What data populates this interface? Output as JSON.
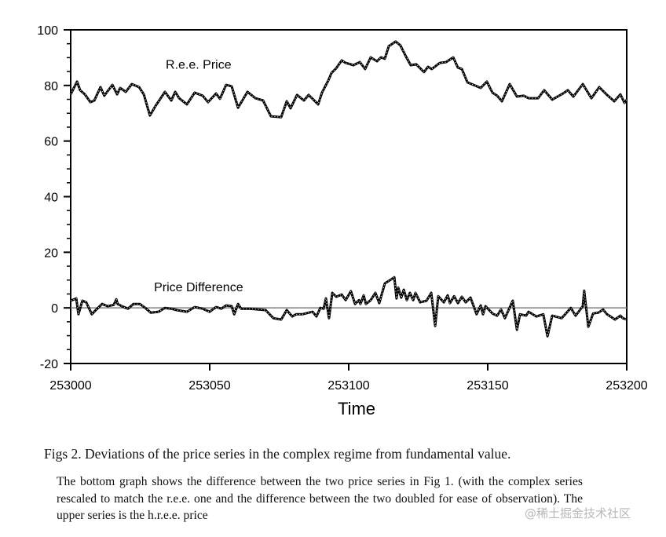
{
  "chart_data": {
    "type": "line",
    "title": "",
    "xlabel": "Time",
    "ylabel": "",
    "xlim": [
      253000,
      253200
    ],
    "ylim": [
      -20,
      100
    ],
    "x_ticks": [
      "253000",
      "253050",
      "253100",
      "253150",
      "253200"
    ],
    "x_tick_values": [
      253000,
      253050,
      253100,
      253150,
      253200
    ],
    "y_ticks": [
      "100",
      "80",
      "60",
      "40",
      "20",
      "0",
      "-20"
    ],
    "y_tick_values": [
      100,
      80,
      60,
      40,
      20,
      0,
      -20
    ],
    "y_minor_step": 5,
    "grid": false,
    "reference_line": {
      "y": 0,
      "color": "#808080"
    },
    "annotations": [
      {
        "text": "R.e.e. Price",
        "x": 253046,
        "y": 86
      },
      {
        "text": "Price Difference",
        "x": 253046,
        "y": 6
      }
    ],
    "series": [
      {
        "name": "R.e.e. Price",
        "color": "#000000",
        "overlay_color": "#ffffff",
        "points": [
          [
            0,
            76.8
          ],
          [
            2.3,
            81.4
          ],
          [
            3.4,
            78.3
          ],
          [
            5.1,
            76.8
          ],
          [
            7.1,
            74
          ],
          [
            8.5,
            74.6
          ],
          [
            10.7,
            79.4
          ],
          [
            12.1,
            76.3
          ],
          [
            15,
            80.2
          ],
          [
            16.7,
            76.8
          ],
          [
            17.8,
            79.1
          ],
          [
            19.8,
            77.7
          ],
          [
            22,
            80.5
          ],
          [
            24.6,
            79.4
          ],
          [
            26.3,
            76.8
          ],
          [
            28.5,
            69.2
          ],
          [
            30.5,
            72.6
          ],
          [
            33.9,
            77.7
          ],
          [
            36.2,
            74.6
          ],
          [
            37.6,
            77.7
          ],
          [
            39,
            75.4
          ],
          [
            41.8,
            73.2
          ],
          [
            44.6,
            77.4
          ],
          [
            47.5,
            76.3
          ],
          [
            49.4,
            74
          ],
          [
            52.3,
            77.1
          ],
          [
            53.7,
            75.2
          ],
          [
            55.9,
            80.2
          ],
          [
            57.9,
            79.7
          ],
          [
            60.2,
            72
          ],
          [
            63.6,
            77.7
          ],
          [
            66.4,
            75.4
          ],
          [
            69.2,
            74.6
          ],
          [
            72,
            68.9
          ],
          [
            75.7,
            68.6
          ],
          [
            77.7,
            74.3
          ],
          [
            79.1,
            71.8
          ],
          [
            81.4,
            76.6
          ],
          [
            83.9,
            74.6
          ],
          [
            85.6,
            76.6
          ],
          [
            89,
            73.2
          ],
          [
            90.4,
            77.4
          ],
          [
            92.7,
            81.9
          ],
          [
            93.8,
            84.5
          ],
          [
            95.5,
            86.2
          ],
          [
            97.5,
            89
          ],
          [
            98.9,
            88.1
          ],
          [
            101.7,
            87.3
          ],
          [
            104,
            88.4
          ],
          [
            105.9,
            85.9
          ],
          [
            107.9,
            90.1
          ],
          [
            110.2,
            88.7
          ],
          [
            111.6,
            90.1
          ],
          [
            113,
            89.6
          ],
          [
            114.4,
            94.1
          ],
          [
            116.9,
            95.8
          ],
          [
            118.6,
            94.4
          ],
          [
            120.6,
            90.4
          ],
          [
            122.3,
            87.3
          ],
          [
            124.3,
            87.6
          ],
          [
            127.1,
            84.8
          ],
          [
            128.5,
            86.7
          ],
          [
            129.9,
            85.9
          ],
          [
            132.8,
            88.1
          ],
          [
            135,
            88.4
          ],
          [
            137.6,
            90.1
          ],
          [
            139.3,
            86.4
          ],
          [
            140.7,
            85.9
          ],
          [
            142.7,
            81.1
          ],
          [
            144.9,
            80.2
          ],
          [
            147.5,
            79.1
          ],
          [
            149.7,
            81.4
          ],
          [
            151.7,
            77.4
          ],
          [
            153.4,
            76.3
          ],
          [
            155.1,
            74.3
          ],
          [
            157.9,
            80.5
          ],
          [
            160.5,
            76
          ],
          [
            163,
            76.3
          ],
          [
            164.7,
            75.4
          ],
          [
            168.1,
            75.4
          ],
          [
            170.3,
            78.3
          ],
          [
            173.2,
            74.9
          ],
          [
            177.1,
            77.1
          ],
          [
            178.8,
            78.3
          ],
          [
            180.8,
            76
          ],
          [
            184.2,
            80.5
          ],
          [
            187.3,
            75.4
          ],
          [
            190.1,
            79.4
          ],
          [
            192.7,
            76.8
          ],
          [
            195.5,
            74.3
          ],
          [
            197.7,
            76.8
          ],
          [
            199.2,
            73.7
          ],
          [
            200,
            74.9
          ]
        ]
      },
      {
        "name": "Price Difference",
        "color": "#000000",
        "overlay_color": "#ffffff",
        "points": [
          [
            0,
            2.6
          ],
          [
            2,
            3.4
          ],
          [
            2.8,
            -2.3
          ],
          [
            4.2,
            2.6
          ],
          [
            5.6,
            2
          ],
          [
            7.6,
            -2.3
          ],
          [
            9,
            -0.8
          ],
          [
            11.3,
            1.4
          ],
          [
            13.3,
            0.6
          ],
          [
            15.5,
            1.1
          ],
          [
            16.4,
            3.1
          ],
          [
            16.9,
            1.4
          ],
          [
            18.4,
            0.6
          ],
          [
            20.6,
            -0.3
          ],
          [
            22.6,
            1.4
          ],
          [
            24.9,
            1.4
          ],
          [
            26.8,
            0
          ],
          [
            28.8,
            -1.7
          ],
          [
            31.6,
            -1.4
          ],
          [
            33.9,
            0
          ],
          [
            36.2,
            -0.3
          ],
          [
            38.1,
            -0.8
          ],
          [
            41.8,
            -1.4
          ],
          [
            44.6,
            0.3
          ],
          [
            47.5,
            -0.3
          ],
          [
            50,
            -1.4
          ],
          [
            52.3,
            0.3
          ],
          [
            54.2,
            -0.3
          ],
          [
            55.9,
            0.9
          ],
          [
            57.9,
            0.6
          ],
          [
            58.8,
            -2.3
          ],
          [
            60.2,
            1.4
          ],
          [
            61.3,
            -0.3
          ],
          [
            64.4,
            -0.3
          ],
          [
            70.1,
            -0.8
          ],
          [
            72.9,
            -3.7
          ],
          [
            75.7,
            -4.2
          ],
          [
            77.7,
            -0.8
          ],
          [
            79.7,
            -3.1
          ],
          [
            81.1,
            -2.3
          ],
          [
            83.3,
            -2.3
          ],
          [
            87,
            -1.4
          ],
          [
            88.4,
            -3.1
          ],
          [
            89.8,
            0
          ],
          [
            91,
            -0.3
          ],
          [
            91.8,
            3.4
          ],
          [
            92.9,
            -3.7
          ],
          [
            94.1,
            5.4
          ],
          [
            95.5,
            4
          ],
          [
            97.5,
            4.8
          ],
          [
            98.9,
            2.8
          ],
          [
            100.8,
            6
          ],
          [
            102.3,
            1.4
          ],
          [
            103.7,
            2.8
          ],
          [
            104.2,
            1.4
          ],
          [
            105.4,
            4.5
          ],
          [
            106.2,
            1.4
          ],
          [
            107.9,
            2.8
          ],
          [
            109.6,
            5.4
          ],
          [
            111,
            1.7
          ],
          [
            113,
            8.8
          ],
          [
            116.4,
            11
          ],
          [
            117.2,
            3.4
          ],
          [
            117.8,
            7.3
          ],
          [
            118.9,
            3.7
          ],
          [
            119.8,
            6.5
          ],
          [
            120.9,
            2.8
          ],
          [
            122,
            5.4
          ],
          [
            123.2,
            2.8
          ],
          [
            124,
            5.4
          ],
          [
            125.7,
            2
          ],
          [
            128,
            2.6
          ],
          [
            129.7,
            5.4
          ],
          [
            131.1,
            -6.5
          ],
          [
            132.2,
            4.2
          ],
          [
            134.2,
            2
          ],
          [
            135.6,
            4.5
          ],
          [
            136.4,
            1.7
          ],
          [
            137.9,
            4.2
          ],
          [
            139.3,
            1.7
          ],
          [
            140.7,
            4
          ],
          [
            142.1,
            2
          ],
          [
            143.8,
            3.7
          ],
          [
            146,
            -2.3
          ],
          [
            147.5,
            0.9
          ],
          [
            148.3,
            -2.3
          ],
          [
            149.2,
            0.6
          ],
          [
            151.7,
            -2
          ],
          [
            153.4,
            -2.8
          ],
          [
            154.8,
            -0.6
          ],
          [
            156.2,
            -3.7
          ],
          [
            159,
            2.6
          ],
          [
            160.5,
            -7.9
          ],
          [
            161.6,
            -2.3
          ],
          [
            163.8,
            -2.8
          ],
          [
            164.7,
            -1.4
          ],
          [
            167.5,
            -3.1
          ],
          [
            170,
            -2.3
          ],
          [
            171.5,
            -10.2
          ],
          [
            173.2,
            -2.8
          ],
          [
            176.6,
            -3.7
          ],
          [
            179.9,
            0
          ],
          [
            181.6,
            -2.8
          ],
          [
            184.2,
            0.6
          ],
          [
            184.7,
            6.2
          ],
          [
            186.2,
            -6.8
          ],
          [
            187.9,
            -2
          ],
          [
            189.8,
            -1.7
          ],
          [
            191.5,
            -0.6
          ],
          [
            192.9,
            -2.3
          ],
          [
            195.8,
            -4.2
          ],
          [
            197.7,
            -2.8
          ],
          [
            198.6,
            -3.7
          ],
          [
            200,
            -4.2
          ]
        ]
      }
    ]
  },
  "caption": {
    "title": "Figs 2. Deviations of the price series in the complex regime from fundamental value.",
    "body": "The bottom graph shows the difference between the two price series in Fig 1. (with the complex series rescaled to match the r.e.e. one and the difference between the two doubled for ease of observation). The upper series is the h.r.e.e. price"
  },
  "watermark": "@稀土掘金技术社区"
}
